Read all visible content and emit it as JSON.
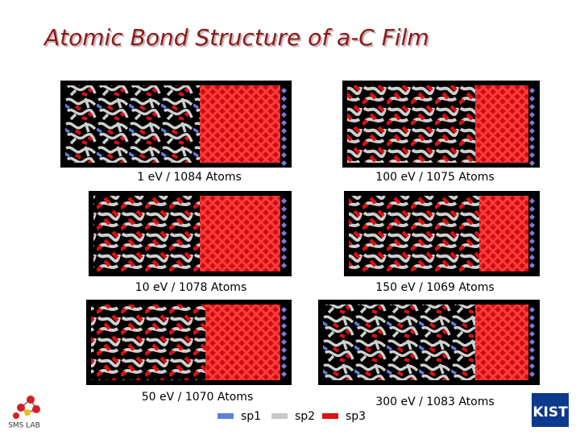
{
  "title": "Atomic Bond Structure of a-C Film",
  "panels": [
    {
      "caption": "1 eV / 1084 Atoms"
    },
    {
      "caption": "100 eV / 1075 Atoms"
    },
    {
      "caption": "10 eV / 1078 Atoms"
    },
    {
      "caption": "150 eV / 1069 Atoms"
    },
    {
      "caption": "50 eV / 1070 Atoms"
    },
    {
      "caption": "300 eV / 1083 Atoms"
    }
  ],
  "legend": [
    {
      "label": "sp1",
      "color": "#5b7fe0"
    },
    {
      "label": "sp2",
      "color": "#c8c8c8"
    },
    {
      "label": "sp3",
      "color": "#e01010"
    }
  ],
  "logos": {
    "left": "SMS LAB",
    "right": "KIST"
  }
}
